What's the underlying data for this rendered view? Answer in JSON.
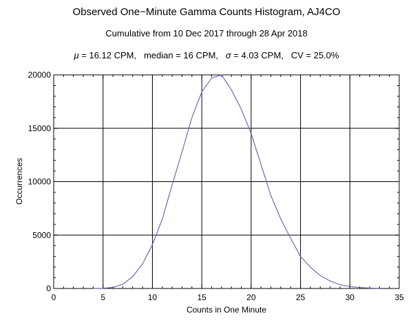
{
  "chart_data": {
    "type": "line",
    "title": "Observed One−Minute Gamma Counts Histogram, AJ4CO",
    "subtitle": "Cumulative from 10 Dec 2017 through 28 Apr 2018",
    "stats": {
      "mu_symbol": "μ",
      "mu_text": " = 16.12 CPM,   median = 16 CPM,   ",
      "sigma_symbol": "σ",
      "sigma_text": " = 4.03 CPM,   CV = 25.0%"
    },
    "xlabel": "Counts in One Minute",
    "ylabel": "Occurrences",
    "xlim": [
      0,
      35
    ],
    "ylim": [
      0,
      20000
    ],
    "xticks": [
      0,
      5,
      10,
      15,
      20,
      25,
      30,
      35
    ],
    "yticks": [
      0,
      5000,
      10000,
      15000,
      20000
    ],
    "grid": true,
    "line_color": "#6a6ab8",
    "x": [
      4,
      5,
      6,
      7,
      8,
      9,
      10,
      11,
      12,
      13,
      14,
      15,
      16,
      17,
      18,
      19,
      20,
      21,
      22,
      23,
      24,
      25,
      26,
      27,
      28,
      29,
      30,
      31,
      32,
      33
    ],
    "y": [
      0,
      20,
      100,
      400,
      1100,
      2300,
      4100,
      6500,
      9700,
      12800,
      16000,
      18400,
      19700,
      20000,
      18600,
      16800,
      14500,
      11600,
      8700,
      6500,
      4700,
      3000,
      2000,
      1200,
      700,
      350,
      180,
      90,
      40,
      15
    ]
  }
}
